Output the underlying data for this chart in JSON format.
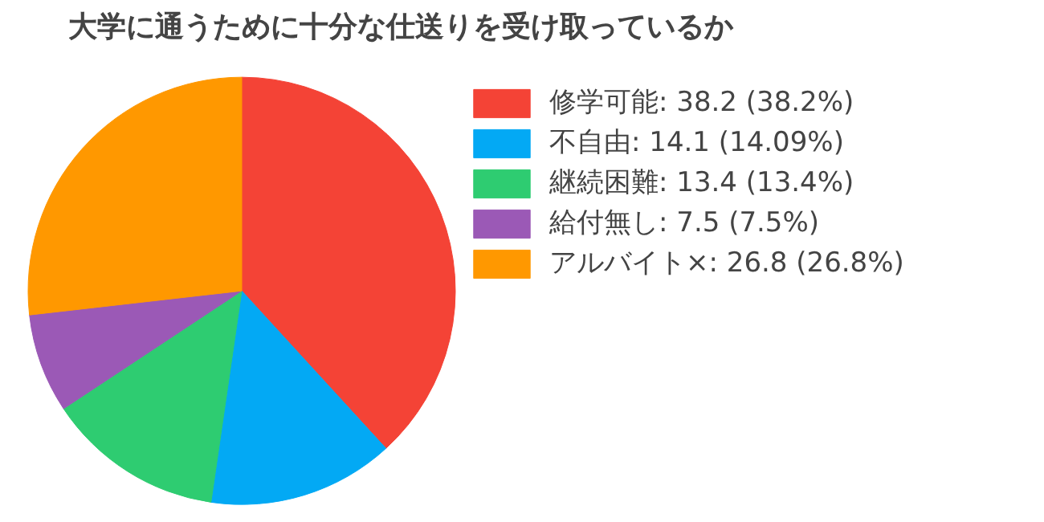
{
  "chart_data": {
    "type": "pie",
    "title": "大学に通うために十分な仕送りを受け取っているか",
    "categories": [
      "修学可能: 38.2 (38.2%)",
      "不自由: 14.1 (14.09%)",
      "継続困難: 13.4 (13.4%)",
      "給付無し: 7.5 (7.5%)",
      "アルバイト×: 26.8 (26.8%)"
    ],
    "values": [
      38.2,
      14.1,
      13.4,
      7.5,
      26.8
    ],
    "colors": [
      "#f44336",
      "#03a9f4",
      "#2ecc71",
      "#9b59b6",
      "#ff9800"
    ],
    "legend": "top right"
  }
}
